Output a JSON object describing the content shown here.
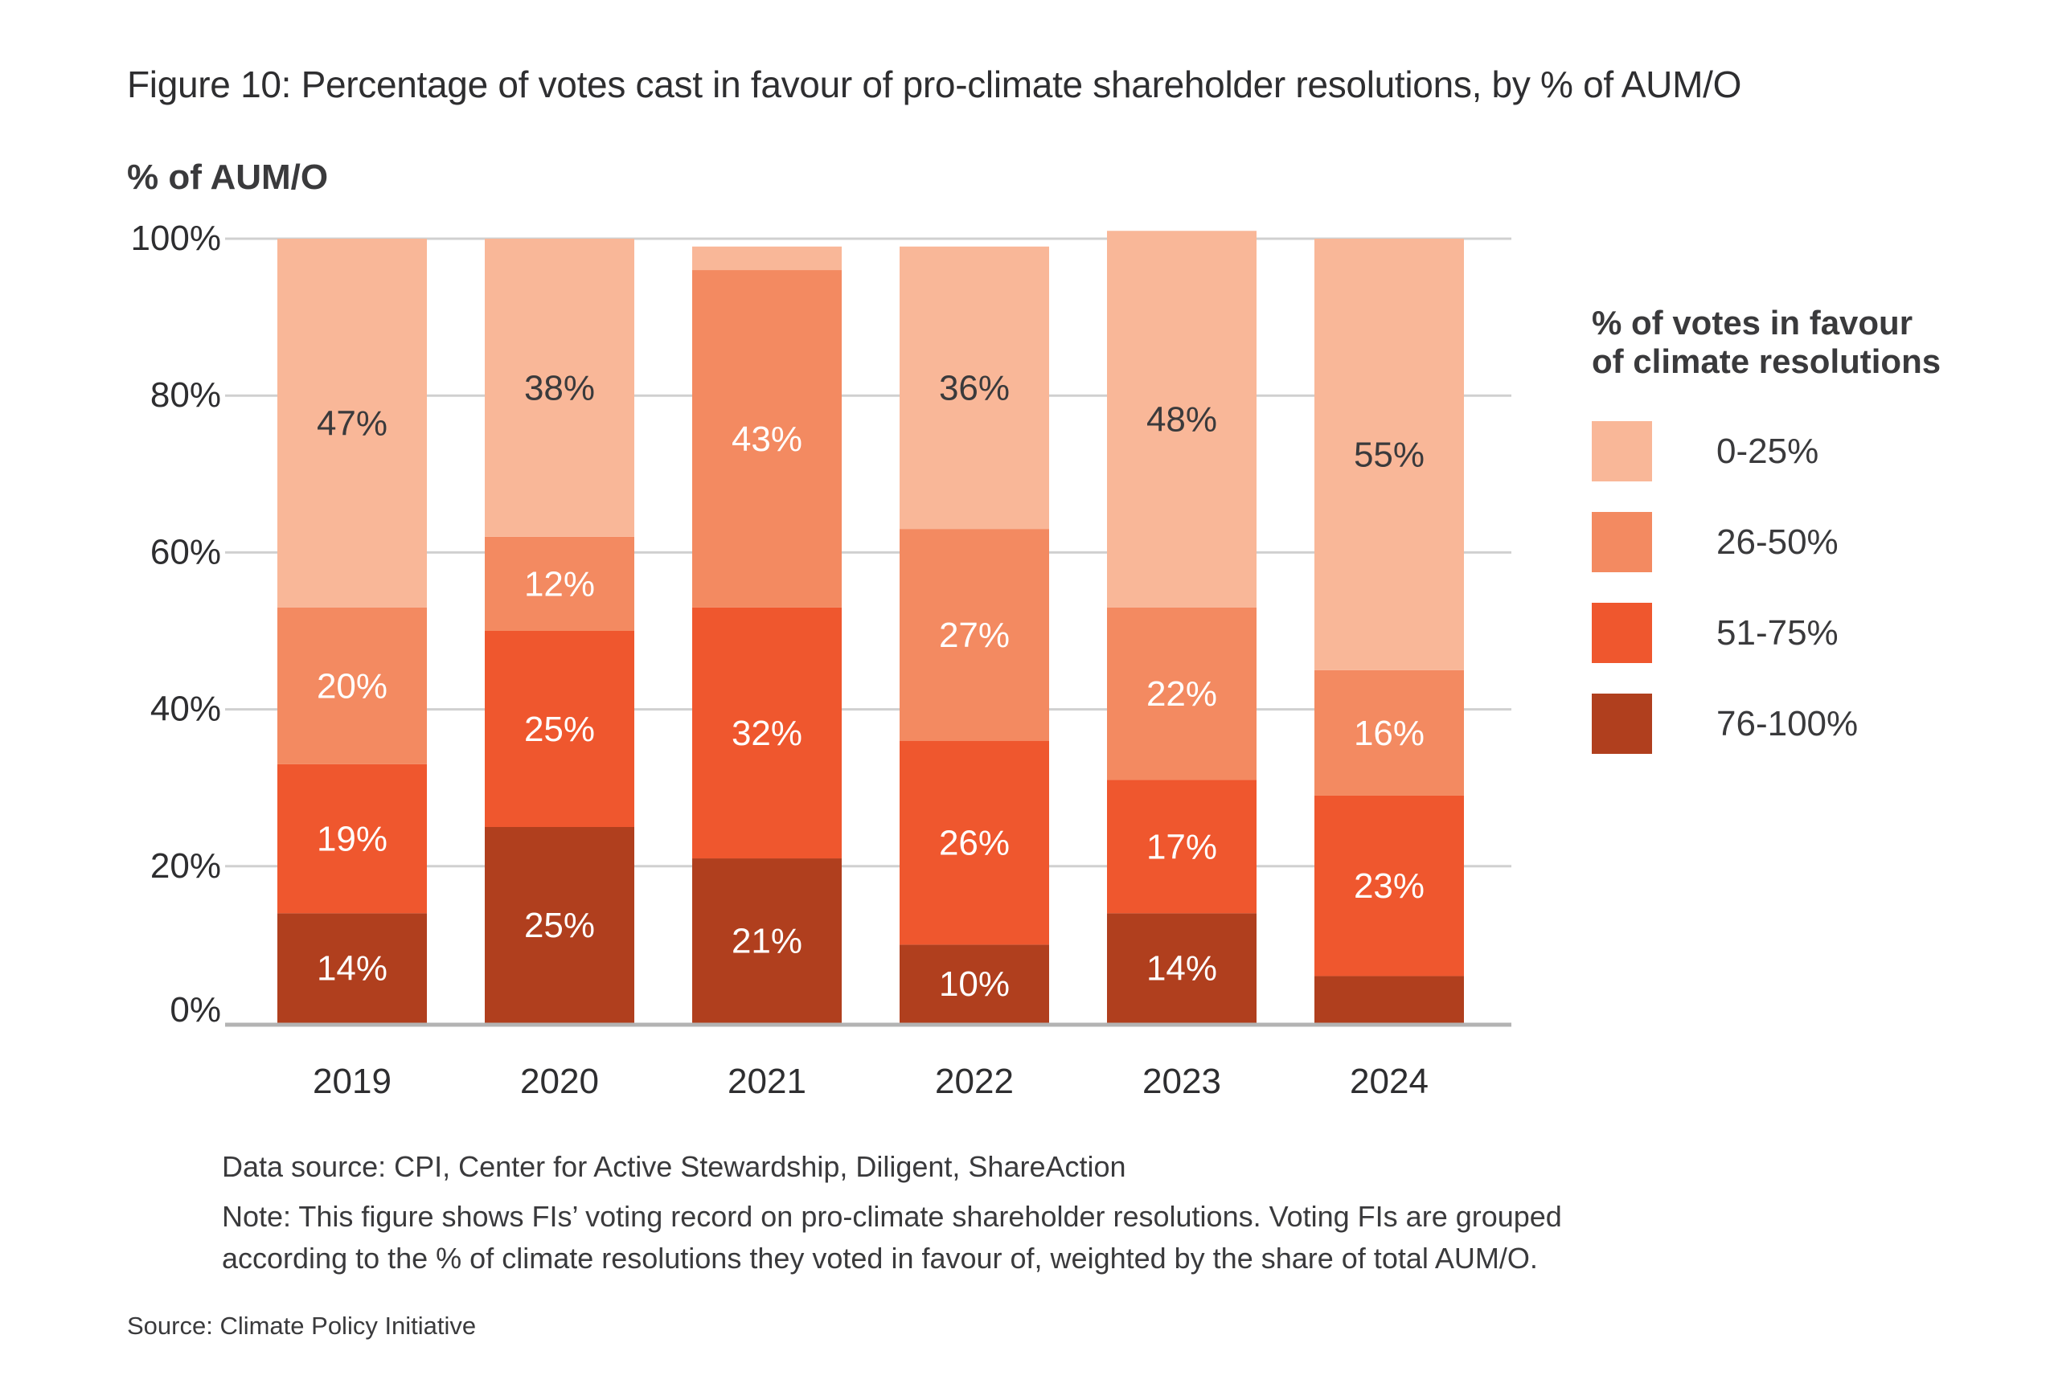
{
  "figure": {
    "title": "Figure 10: Percentage of votes cast in favour of pro-climate shareholder resolutions, by % of AUM/O",
    "y_axis_title": "% of AUM/O"
  },
  "legend": {
    "title_line1": "% of votes in favour",
    "title_line2": "of climate resolutions",
    "items": [
      {
        "label": "0-25%",
        "color": "#F9B798"
      },
      {
        "label": "26-50%",
        "color": "#F38A61"
      },
      {
        "label": "51-75%",
        "color": "#EF572E"
      },
      {
        "label": "76-100%",
        "color": "#B03F1E"
      }
    ]
  },
  "notes": {
    "data_source": "Data source: CPI, Center for Active Stewardship, Diligent, ShareAction",
    "note_line1": "Note: This figure shows FIs’ voting record on pro-climate shareholder resolutions. Voting FIs are grouped",
    "note_line2": "according to the % of climate resolutions they voted in favour of, weighted by the share of total AUM/O.",
    "source": "Source: Climate Policy Initiative"
  },
  "chart_data": {
    "type": "bar",
    "stacked": true,
    "title": "Figure 10: Percentage of votes cast in favour of pro-climate shareholder resolutions, by % of AUM/O",
    "xlabel": "",
    "ylabel": "% of AUM/O",
    "ylim": [
      0,
      100
    ],
    "yticks": [
      0,
      20,
      40,
      60,
      80,
      100
    ],
    "ytick_labels": [
      "0%",
      "20%",
      "40%",
      "60%",
      "80%",
      "100%"
    ],
    "grid": true,
    "legend_position": "right",
    "legend_title": "% of votes in favour of climate resolutions",
    "categories": [
      "2019",
      "2020",
      "2021",
      "2022",
      "2023",
      "2024"
    ],
    "series": [
      {
        "name": "76-100%",
        "color": "#B03F1E",
        "label_color": "#ffffff",
        "values": [
          14,
          25,
          21,
          10,
          14,
          6
        ],
        "labels": [
          "14%",
          "25%",
          "21%",
          "10%",
          "14%",
          ""
        ]
      },
      {
        "name": "51-75%",
        "color": "#EF572E",
        "label_color": "#ffffff",
        "values": [
          19,
          25,
          32,
          26,
          17,
          23
        ],
        "labels": [
          "19%",
          "25%",
          "32%",
          "26%",
          "17%",
          "23%"
        ]
      },
      {
        "name": "26-50%",
        "color": "#F38A61",
        "label_color": "#ffffff",
        "values": [
          20,
          12,
          43,
          27,
          22,
          16
        ],
        "labels": [
          "20%",
          "12%",
          "43%",
          "27%",
          "22%",
          "16%"
        ]
      },
      {
        "name": "0-25%",
        "color": "#F9B798",
        "label_color": "#3a3a3c",
        "values": [
          47,
          38,
          3,
          36,
          48,
          55
        ],
        "labels": [
          "47%",
          "38%",
          "",
          "36%",
          "48%",
          "55%"
        ]
      }
    ]
  }
}
